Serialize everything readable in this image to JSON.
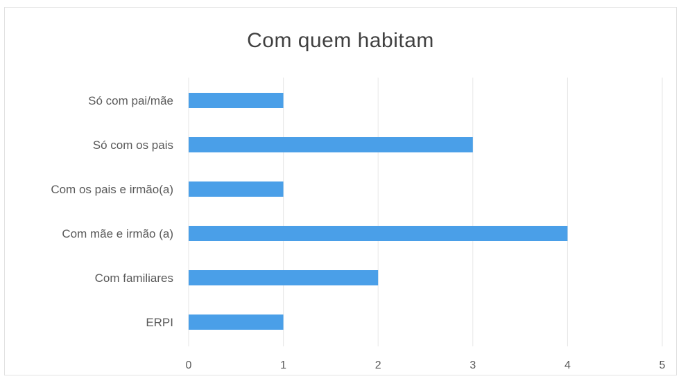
{
  "chart_data": {
    "type": "bar",
    "orientation": "horizontal",
    "title": "Com quem habitam",
    "categories": [
      "Só com pai/mãe",
      "Só com os pais",
      "Com os pais e irmão(a)",
      "Com mãe e irmão (a)",
      "Com familiares",
      "ERPI"
    ],
    "values": [
      1,
      3,
      1,
      4,
      2,
      1
    ],
    "xlim": [
      0,
      5
    ],
    "xticks": [
      "0",
      "1",
      "2",
      "3",
      "4",
      "5"
    ],
    "grid": "vertical",
    "bar_color": "#4a9fe8"
  }
}
